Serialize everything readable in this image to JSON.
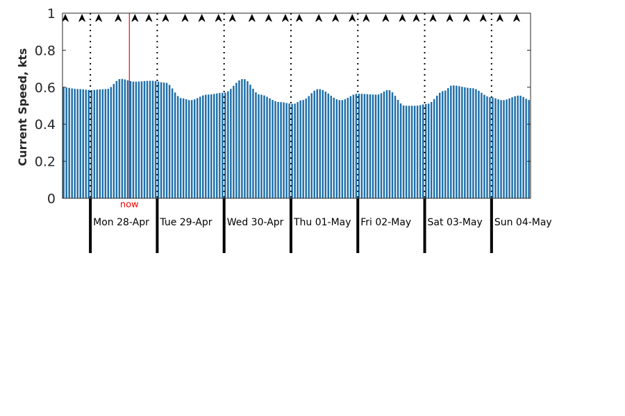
{
  "chart_data": {
    "type": "bar",
    "title": "",
    "xlabel": "",
    "ylabel": "Current Speed, kts",
    "ylim": [
      0,
      1
    ],
    "yticks": [
      "0",
      "0.2",
      "0.4",
      "0.6",
      "0.8",
      "1"
    ],
    "xlim_hours": [
      0,
      168
    ],
    "start_offset_note": "",
    "bar_color": "#1f6fa8",
    "now_color": "#ff0000",
    "now_label": "now",
    "now_hour": 24,
    "day_labels": [
      "Mon 28-Apr",
      "Tue 29-Apr",
      "Wed 30-Apr",
      "Thu 01-May",
      "Fri 02-May",
      "Sat 03-May",
      "Sun 04-May"
    ],
    "day_boundary_hours": [
      10,
      34,
      58,
      82,
      106,
      130,
      154
    ],
    "direction_arrow_hours": [
      1,
      7,
      13,
      20,
      26,
      31,
      37,
      44,
      50,
      56,
      61,
      68,
      74,
      80,
      85,
      92,
      98,
      104,
      109,
      116,
      122,
      127,
      133,
      139,
      145,
      151,
      157,
      163
    ],
    "direction_icon": "arrow-head-up-icon",
    "speed_keys": [
      [
        0,
        0.6
      ],
      [
        6,
        0.59
      ],
      [
        10,
        0.585
      ],
      [
        16,
        0.59
      ],
      [
        21,
        0.645
      ],
      [
        26,
        0.63
      ],
      [
        32,
        0.635
      ],
      [
        37,
        0.625
      ],
      [
        43,
        0.54
      ],
      [
        46,
        0.53
      ],
      [
        52,
        0.56
      ],
      [
        58,
        0.57
      ],
      [
        65,
        0.645
      ],
      [
        71,
        0.56
      ],
      [
        78,
        0.52
      ],
      [
        83,
        0.51
      ],
      [
        86,
        0.53
      ],
      [
        92,
        0.59
      ],
      [
        100,
        0.53
      ],
      [
        106,
        0.565
      ],
      [
        113,
        0.56
      ],
      [
        117,
        0.585
      ],
      [
        123,
        0.5
      ],
      [
        127,
        0.5
      ],
      [
        131,
        0.51
      ],
      [
        137,
        0.58
      ],
      [
        140,
        0.61
      ],
      [
        147,
        0.595
      ],
      [
        154,
        0.545
      ],
      [
        158,
        0.53
      ],
      [
        164,
        0.555
      ],
      [
        168,
        0.53
      ]
    ]
  }
}
